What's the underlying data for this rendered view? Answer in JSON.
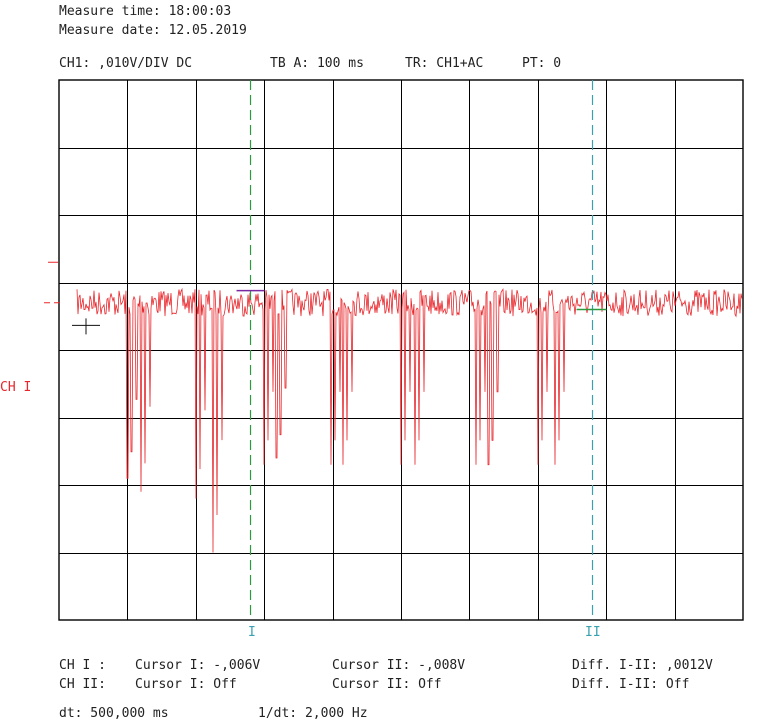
{
  "header": {
    "measure_time": "Measure time: 18:00:03",
    "measure_date": "Measure date: 12.05.2019"
  },
  "settings": {
    "ch1": "CH1: ,010V/DIV DC",
    "timebase": "TB A: 100 ms",
    "trigger": "TR: CH1+AC",
    "pretrigger": "PT: 0"
  },
  "channel_label": "CH I",
  "cursor_labels": {
    "cursor1": "I",
    "cursor2": "II"
  },
  "readouts": {
    "row1": {
      "channel": "CH I :",
      "cursor1": "Cursor I: -,006V",
      "cursor2": "Cursor II: -,008V",
      "diff": "Diff. I-II: ,0012V"
    },
    "row2": {
      "channel": "CH II:",
      "cursor1": "Cursor I: Off",
      "cursor2": "Cursor II: Off",
      "diff": "Diff. I-II: Off"
    },
    "dt": "dt: 500,000 ms",
    "inv_dt": "1/dt: 2,000 Hz"
  },
  "colors": {
    "trace": "#e8262b",
    "grid": "#000000",
    "cursor1": "#2e9a3e",
    "cursor2": "#3aa0b0",
    "cursor1_marker": "#7a2aa0",
    "cursor2_marker": "#2e9a3e"
  },
  "chart_data": {
    "type": "line",
    "grid": true,
    "divisions": {
      "x": 10,
      "y": 8
    },
    "time_per_div_ms": 100,
    "volts_per_div": 0.01,
    "time_range_ms": [
      0,
      1000
    ],
    "baseline_div": 3.3,
    "cursor1_time_ms": 280,
    "cursor2_time_ms": 780,
    "spike_times_ms": [
      100,
      120,
      200,
      225,
      300,
      318,
      398,
      415,
      500,
      520,
      610,
      628,
      700,
      725
    ],
    "spike_depths_div": [
      2.6,
      2.8,
      2.9,
      3.7,
      2.4,
      2.3,
      2.4,
      2.4,
      2.4,
      2.4,
      2.4,
      2.4,
      2.4,
      2.4
    ],
    "noise_div": 0.2
  }
}
